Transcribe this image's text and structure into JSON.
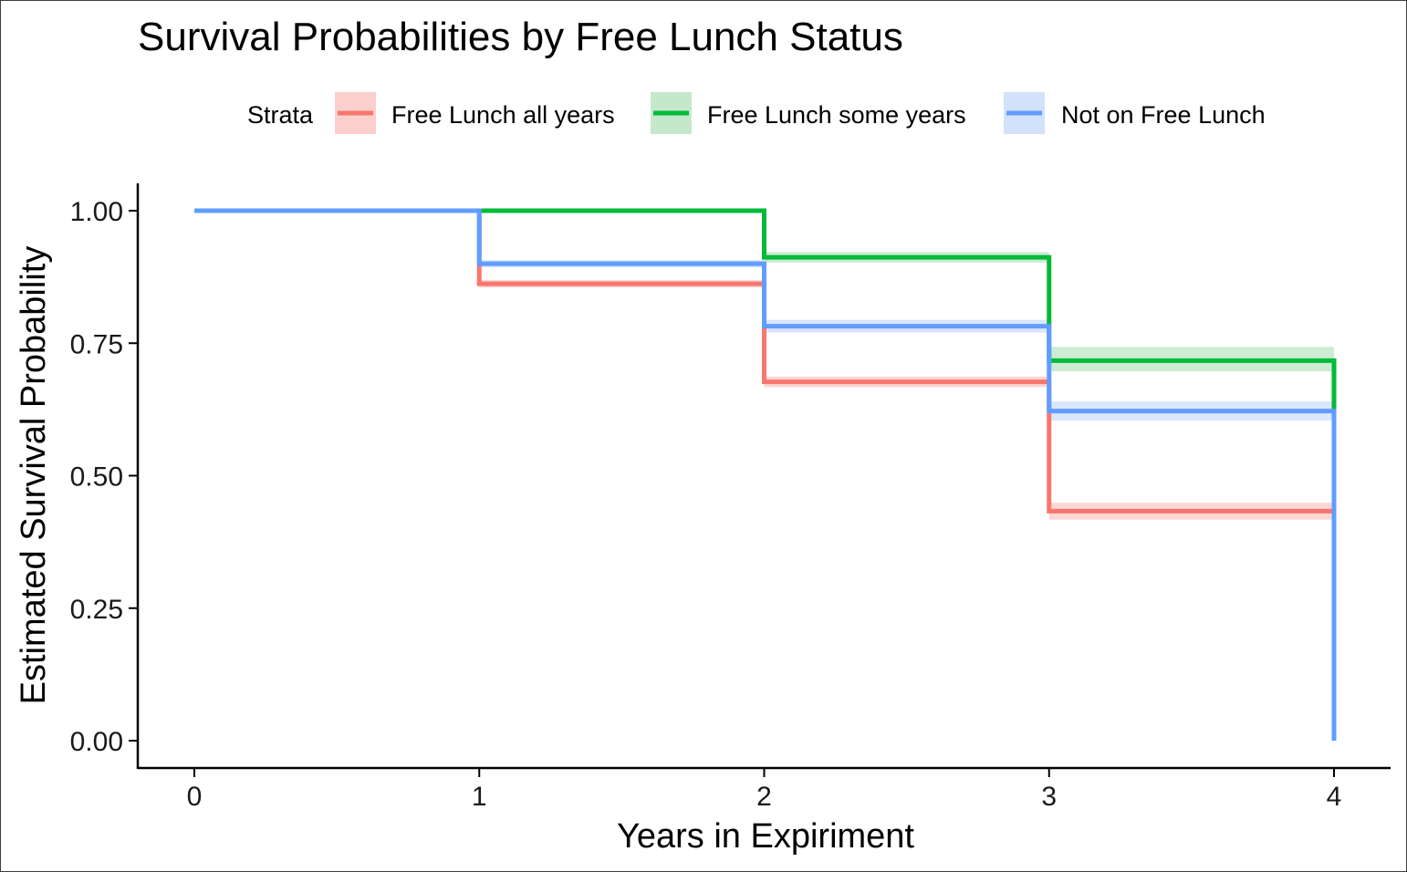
{
  "chart_data": {
    "type": "line",
    "step": true,
    "title": "Survival Probabilities by Free Lunch Status",
    "xlabel": "Years in Expiriment",
    "ylabel": "Estimated Survival Probability",
    "xlim": [
      0,
      4
    ],
    "ylim": [
      0,
      1
    ],
    "xticks": [
      0,
      1,
      2,
      3,
      4
    ],
    "xtick_labels": [
      "0",
      "1",
      "2",
      "3",
      "4"
    ],
    "yticks": [
      0,
      0.25,
      0.5,
      0.75,
      1
    ],
    "ytick_labels": [
      "0.00",
      "0.25",
      "0.50",
      "0.75",
      "1.00"
    ],
    "grid": false,
    "legend": {
      "title": "Strata",
      "position": "top"
    },
    "x": [
      0,
      1,
      2,
      3,
      4
    ],
    "series": [
      {
        "name": "Free Lunch all years",
        "color": "#F8766D",
        "band_color": "#FBCFCC",
        "values": [
          1.0,
          0.862,
          0.677,
          0.433,
          0.433
        ],
        "ci_lower": [
          1.0,
          0.855,
          0.667,
          0.417,
          0.417
        ],
        "ci_upper": [
          1.0,
          0.869,
          0.687,
          0.449,
          0.449
        ]
      },
      {
        "name": "Free Lunch some years",
        "color": "#00BA38",
        "band_color": "#C5E8CC",
        "values": [
          1.0,
          1.0,
          0.912,
          0.717,
          0.624
        ],
        "ci_lower": [
          1.0,
          1.0,
          0.902,
          0.697,
          0.624
        ],
        "ci_upper": [
          1.0,
          1.0,
          0.922,
          0.743,
          0.624
        ]
      },
      {
        "name": "Not on Free Lunch",
        "color": "#619CFF",
        "band_color": "#D3E2FB",
        "values": [
          1.0,
          0.9,
          0.782,
          0.622,
          0.0
        ],
        "ci_lower": [
          1.0,
          0.893,
          0.77,
          0.604,
          0.0
        ],
        "ci_upper": [
          1.0,
          0.907,
          0.794,
          0.64,
          0.0
        ]
      }
    ]
  }
}
